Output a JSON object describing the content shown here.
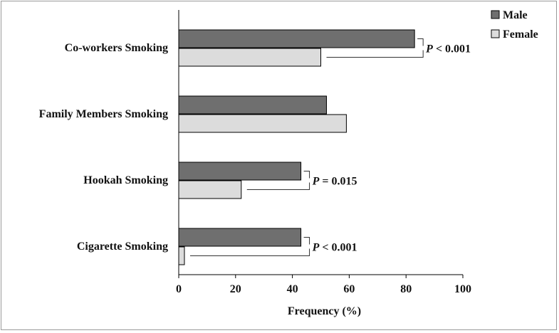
{
  "chart_data": {
    "type": "bar",
    "orientation": "horizontal",
    "categories": [
      "Co-workers Smoking",
      "Family Members Smoking",
      "Hookah Smoking",
      "Cigarette Smoking"
    ],
    "series": [
      {
        "name": "Male",
        "values": [
          83,
          52,
          43,
          43
        ],
        "color": "#6f6f6f"
      },
      {
        "name": "Female",
        "values": [
          50,
          59,
          22,
          2
        ],
        "color": "#dcdcdc"
      }
    ],
    "xlabel": "Frequency (%)",
    "xlim": [
      0,
      100
    ],
    "xticks": [
      0,
      20,
      40,
      60,
      80,
      100
    ],
    "legend_position": "top-right",
    "annotations": [
      {
        "category": "Co-workers Smoking",
        "text": "P < 0.001",
        "stat": "P",
        "rest": " < 0.001"
      },
      {
        "category": "Family Members Smoking",
        "text": "",
        "stat": "",
        "rest": ""
      },
      {
        "category": "Hookah Smoking",
        "text": "P = 0.015",
        "stat": "P",
        "rest": " = 0.015"
      },
      {
        "category": "Cigarette Smoking",
        "text": "P < 0.001",
        "stat": "P",
        "rest": " < 0.001"
      }
    ]
  }
}
